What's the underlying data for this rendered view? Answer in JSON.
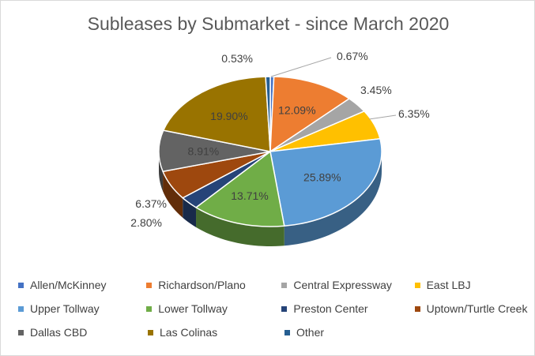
{
  "chart_data": {
    "type": "pie",
    "title": "Subleases by Submarket - since March 2020",
    "legend_position": "bottom",
    "slices": [
      {
        "name": "Allen/McKinney",
        "value": 0.53,
        "label": "0.53%",
        "color": "#4472c4"
      },
      {
        "name": "Richardson/Plano",
        "value": 12.09,
        "label": "12.09%",
        "color": "#ed7d31"
      },
      {
        "name": "Central Expressway",
        "value": 3.45,
        "label": "3.45%",
        "color": "#a5a5a5"
      },
      {
        "name": "East LBJ",
        "value": 6.35,
        "label": "6.35%",
        "color": "#ffc000"
      },
      {
        "name": "Upper Tollway",
        "value": 25.89,
        "label": "25.89%",
        "color": "#5b9bd5"
      },
      {
        "name": "Lower Tollway",
        "value": 13.71,
        "label": "13.71%",
        "color": "#70ad47"
      },
      {
        "name": "Preston Center",
        "value": 2.8,
        "label": "2.80%",
        "color": "#264478"
      },
      {
        "name": "Uptown/Turtle Creek",
        "value": 6.37,
        "label": "6.37%",
        "color": "#9e480e"
      },
      {
        "name": "Dallas CBD",
        "value": 8.91,
        "label": "8.91%",
        "color": "#636363"
      },
      {
        "name": "Las Colinas",
        "value": 19.9,
        "label": "19.90%",
        "color": "#997300"
      },
      {
        "name": "Other",
        "value": 0.67,
        "label": "0.67%",
        "color": "#255e91"
      }
    ]
  }
}
